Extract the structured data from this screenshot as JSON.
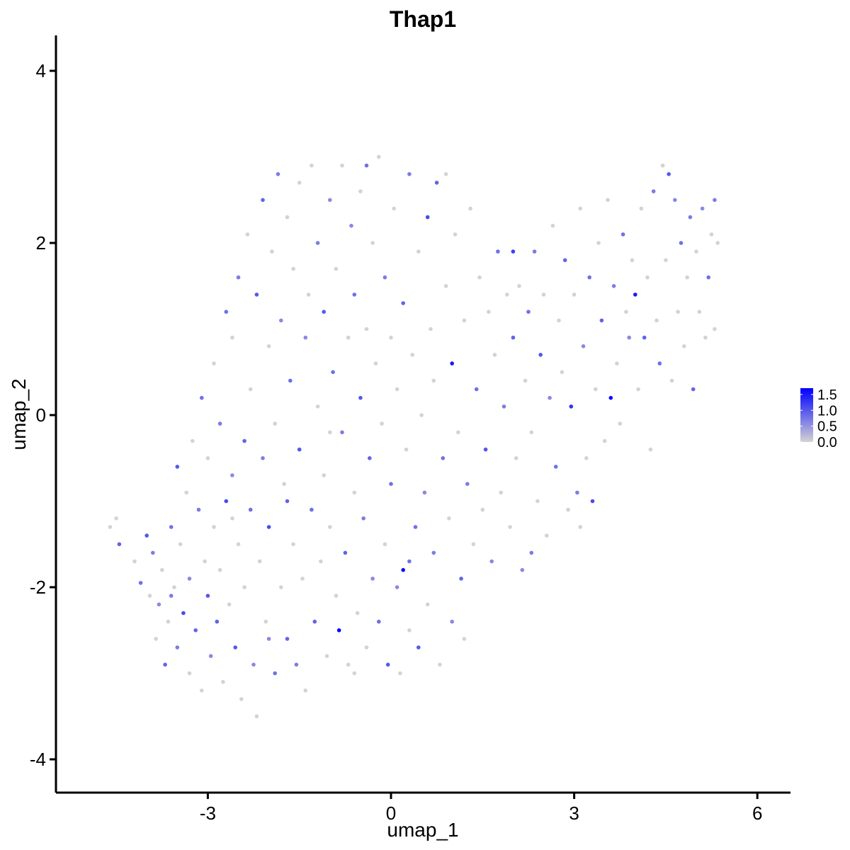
{
  "chart_data": {
    "type": "scatter",
    "title": "Thap1",
    "xlabel": "umap_1",
    "ylabel": "umap_2",
    "xlim": [
      -5.5,
      6.6
    ],
    "ylim": [
      -4.4,
      4.5
    ],
    "x_ticks": [
      -3,
      0,
      3,
      6
    ],
    "y_ticks": [
      -4,
      -2,
      0,
      2,
      4
    ],
    "x_tick_labels": [
      "-3",
      "0",
      "3",
      "6"
    ],
    "y_tick_labels": [
      "-4",
      "-2",
      "0",
      "2",
      "4"
    ],
    "grid": false,
    "legend": {
      "placement": "right",
      "type": "colorbar",
      "ticks": [
        1.5,
        1.0,
        0.5,
        0.0
      ],
      "tick_labels": [
        "1.5",
        "1.0",
        "0.5",
        "0.0"
      ],
      "range": [
        0.0,
        1.7
      ],
      "low_color": "#d3d3d3",
      "high_color": "#0000ff"
    },
    "points": [
      [
        -4.6,
        -1.3,
        0
      ],
      [
        -4.5,
        -1.2,
        0
      ],
      [
        -4.45,
        -1.5,
        0.9
      ],
      [
        -4.2,
        -1.7,
        0
      ],
      [
        -4.1,
        -1.95,
        0.8
      ],
      [
        -4.0,
        -1.4,
        1.0
      ],
      [
        -3.95,
        -2.1,
        0
      ],
      [
        -3.9,
        -1.6,
        0.7
      ],
      [
        -3.85,
        -2.6,
        0
      ],
      [
        -3.8,
        -2.2,
        0.6
      ],
      [
        -3.75,
        -1.8,
        0
      ],
      [
        -3.7,
        -2.9,
        0.9
      ],
      [
        -3.65,
        -2.4,
        0
      ],
      [
        -3.6,
        -1.3,
        0.8
      ],
      [
        -3.55,
        -2.0,
        0
      ],
      [
        -3.5,
        -2.7,
        0.7
      ],
      [
        -3.5,
        -0.6,
        1.0
      ],
      [
        -3.45,
        -1.5,
        0
      ],
      [
        -3.4,
        -2.3,
        1.1
      ],
      [
        -3.35,
        -0.9,
        0
      ],
      [
        -3.3,
        -3.0,
        0
      ],
      [
        -3.3,
        -1.9,
        0.6
      ],
      [
        -3.25,
        -0.3,
        0
      ],
      [
        -3.2,
        -2.5,
        0.9
      ],
      [
        -3.15,
        -1.1,
        0.7
      ],
      [
        -3.1,
        -3.2,
        0
      ],
      [
        -3.1,
        0.2,
        0.8
      ],
      [
        -3.05,
        -1.7,
        0
      ],
      [
        -3.0,
        -2.1,
        1.0
      ],
      [
        -3.0,
        -0.5,
        0
      ],
      [
        -2.95,
        -2.8,
        0.6
      ],
      [
        -2.9,
        -1.3,
        0
      ],
      [
        -2.9,
        0.6,
        0
      ],
      [
        -2.85,
        -2.4,
        0.9
      ],
      [
        -2.8,
        -0.1,
        0.7
      ],
      [
        -2.8,
        -1.8,
        0
      ],
      [
        -2.75,
        -3.1,
        0
      ],
      [
        -2.7,
        -1.0,
        1.1
      ],
      [
        -2.7,
        1.2,
        0.8
      ],
      [
        -2.65,
        -2.2,
        0
      ],
      [
        -2.6,
        -0.7,
        0.6
      ],
      [
        -2.6,
        0.9,
        0
      ],
      [
        -2.55,
        -2.7,
        1.0
      ],
      [
        -2.5,
        -1.5,
        0
      ],
      [
        -2.5,
        1.6,
        0.7
      ],
      [
        -2.45,
        -3.3,
        0
      ],
      [
        -2.4,
        -0.3,
        0.9
      ],
      [
        -2.4,
        -2.0,
        0
      ],
      [
        -2.35,
        2.1,
        0
      ],
      [
        -2.3,
        -1.1,
        0.8
      ],
      [
        -2.3,
        0.3,
        0
      ],
      [
        -2.25,
        -2.9,
        0.6
      ],
      [
        -2.2,
        -3.5,
        0
      ],
      [
        -2.2,
        1.4,
        1.0
      ],
      [
        -2.15,
        -1.7,
        0
      ],
      [
        -2.1,
        -0.5,
        0.7
      ],
      [
        -2.1,
        2.5,
        0.9
      ],
      [
        -2.05,
        -2.4,
        0
      ],
      [
        -2.0,
        0.8,
        0
      ],
      [
        -2.0,
        -1.3,
        1.1
      ],
      [
        -1.95,
        1.9,
        0
      ],
      [
        -1.9,
        -3.0,
        0.8
      ],
      [
        -1.9,
        -0.1,
        0
      ],
      [
        -1.85,
        2.8,
        0.7
      ],
      [
        -1.8,
        -2.0,
        0
      ],
      [
        -1.8,
        1.1,
        0.6
      ],
      [
        -1.75,
        -0.8,
        0
      ],
      [
        -1.7,
        -2.6,
        0.9
      ],
      [
        -1.7,
        2.3,
        0
      ],
      [
        -1.65,
        0.4,
        0.8
      ],
      [
        -1.6,
        -1.5,
        0
      ],
      [
        -1.6,
        1.7,
        0
      ],
      [
        -1.55,
        -2.9,
        0.7
      ],
      [
        -1.5,
        2.7,
        0
      ],
      [
        -1.5,
        -0.4,
        1.0
      ],
      [
        -1.45,
        -1.9,
        0
      ],
      [
        -1.4,
        0.9,
        0.6
      ],
      [
        -1.4,
        -3.2,
        0
      ],
      [
        -1.35,
        1.4,
        0
      ],
      [
        -1.3,
        -1.1,
        0.8
      ],
      [
        -1.3,
        2.9,
        0
      ],
      [
        -1.25,
        -2.4,
        0.9
      ],
      [
        -1.2,
        0.1,
        0
      ],
      [
        -1.2,
        2.0,
        0.7
      ],
      [
        -1.15,
        -1.7,
        0
      ],
      [
        -1.1,
        -0.7,
        0
      ],
      [
        -1.1,
        1.2,
        1.0
      ],
      [
        -1.05,
        -2.8,
        0
      ],
      [
        -1.0,
        2.5,
        0.6
      ],
      [
        -1.0,
        -1.3,
        0
      ],
      [
        -0.95,
        0.5,
        0.8
      ],
      [
        -0.9,
        -2.1,
        0
      ],
      [
        -0.9,
        1.7,
        0
      ],
      [
        -0.85,
        -2.5,
        1.7
      ],
      [
        -0.8,
        -0.2,
        0.7
      ],
      [
        -0.8,
        2.9,
        0
      ],
      [
        -0.75,
        -1.6,
        0.9
      ],
      [
        -0.7,
        0.9,
        0
      ],
      [
        -0.7,
        -2.9,
        0
      ],
      [
        -0.65,
        2.2,
        0.6
      ],
      [
        -0.6,
        -0.9,
        0
      ],
      [
        -0.6,
        1.4,
        0.8
      ],
      [
        -0.55,
        -2.3,
        0
      ],
      [
        -0.5,
        0.2,
        1.0
      ],
      [
        -0.5,
        2.6,
        0
      ],
      [
        -0.45,
        -1.2,
        0.7
      ],
      [
        -0.4,
        -2.7,
        0
      ],
      [
        -0.4,
        1.0,
        0
      ],
      [
        -0.35,
        -0.5,
        0.9
      ],
      [
        -0.3,
        2.0,
        0
      ],
      [
        -0.3,
        -1.9,
        0.6
      ],
      [
        -0.25,
        0.6,
        0
      ],
      [
        -0.2,
        3.0,
        0
      ],
      [
        -0.2,
        -2.4,
        0.8
      ],
      [
        -0.15,
        -0.1,
        0
      ],
      [
        -0.1,
        1.6,
        0.7
      ],
      [
        -0.1,
        -1.5,
        0
      ],
      [
        -0.05,
        -2.9,
        1.0
      ],
      [
        0.0,
        0.9,
        0
      ],
      [
        0.0,
        -0.8,
        0.8
      ],
      [
        0.05,
        2.4,
        0
      ],
      [
        0.1,
        -2.0,
        0.6
      ],
      [
        0.1,
        0.3,
        0
      ],
      [
        0.15,
        -3.0,
        0
      ],
      [
        0.2,
        -1.8,
        1.6
      ],
      [
        0.2,
        1.3,
        0.9
      ],
      [
        0.25,
        -0.4,
        0
      ],
      [
        0.3,
        2.8,
        0.7
      ],
      [
        0.3,
        -2.5,
        0
      ],
      [
        0.35,
        0.7,
        0
      ],
      [
        0.4,
        -1.3,
        0.8
      ],
      [
        0.45,
        1.9,
        0
      ],
      [
        0.45,
        -2.7,
        1.0
      ],
      [
        0.5,
        0.0,
        0
      ],
      [
        0.55,
        -0.9,
        0.6
      ],
      [
        0.6,
        2.3,
        1.1
      ],
      [
        0.6,
        -2.2,
        0
      ],
      [
        0.65,
        1.0,
        0
      ],
      [
        0.7,
        -1.6,
        0.7
      ],
      [
        0.7,
        0.4,
        0
      ],
      [
        0.75,
        2.7,
        0.9
      ],
      [
        0.8,
        -2.9,
        0
      ],
      [
        0.85,
        -0.5,
        0.8
      ],
      [
        0.9,
        1.5,
        0
      ],
      [
        0.95,
        -1.2,
        0
      ],
      [
        1.0,
        0.6,
        1.5
      ],
      [
        1.0,
        -2.4,
        0.6
      ],
      [
        1.05,
        2.1,
        0
      ],
      [
        1.1,
        -0.2,
        0
      ],
      [
        1.15,
        -1.9,
        0.9
      ],
      [
        1.2,
        1.1,
        0
      ],
      [
        1.25,
        -0.8,
        0.7
      ],
      [
        1.3,
        2.4,
        0
      ],
      [
        1.35,
        -1.5,
        0
      ],
      [
        1.4,
        0.3,
        0.8
      ],
      [
        1.45,
        1.6,
        0
      ],
      [
        1.5,
        -1.1,
        0
      ],
      [
        1.55,
        -0.4,
        1.0
      ],
      [
        1.6,
        1.2,
        0
      ],
      [
        1.65,
        -1.7,
        0.6
      ],
      [
        1.7,
        0.7,
        0
      ],
      [
        1.75,
        1.9,
        0.8
      ],
      [
        1.8,
        -0.9,
        0
      ],
      [
        1.85,
        0.1,
        0.7
      ],
      [
        1.9,
        1.4,
        0
      ],
      [
        1.95,
        -1.3,
        0
      ],
      [
        2.0,
        0.9,
        0.9
      ],
      [
        2.0,
        1.9,
        1.2
      ],
      [
        2.05,
        -0.5,
        0
      ],
      [
        2.1,
        1.5,
        0
      ],
      [
        2.15,
        -1.8,
        0.6
      ],
      [
        2.2,
        0.4,
        0
      ],
      [
        2.25,
        1.2,
        0.8
      ],
      [
        2.3,
        -0.2,
        0
      ],
      [
        2.35,
        1.9,
        0.7
      ],
      [
        2.4,
        -1.0,
        0
      ],
      [
        2.45,
        0.7,
        1.0
      ],
      [
        2.5,
        1.4,
        0
      ],
      [
        2.55,
        -1.4,
        0
      ],
      [
        2.6,
        0.2,
        0.6
      ],
      [
        2.65,
        2.2,
        0
      ],
      [
        2.7,
        -0.6,
        0.8
      ],
      [
        2.75,
        1.1,
        0
      ],
      [
        2.8,
        0.5,
        0
      ],
      [
        2.85,
        1.8,
        0.9
      ],
      [
        2.9,
        -1.1,
        0
      ],
      [
        2.95,
        0.1,
        1.3
      ],
      [
        3.0,
        1.4,
        0
      ],
      [
        3.05,
        -0.9,
        0.7
      ],
      [
        3.1,
        2.4,
        0
      ],
      [
        3.15,
        0.8,
        0.6
      ],
      [
        3.2,
        -0.5,
        0
      ],
      [
        3.25,
        1.6,
        0.8
      ],
      [
        3.3,
        -1.0,
        1.1
      ],
      [
        3.35,
        0.3,
        0
      ],
      [
        3.4,
        2.0,
        0
      ],
      [
        3.45,
        1.1,
        0.9
      ],
      [
        3.5,
        -0.3,
        0
      ],
      [
        3.55,
        2.5,
        0
      ],
      [
        3.6,
        0.2,
        1.6
      ],
      [
        3.65,
        1.5,
        0.7
      ],
      [
        3.7,
        0.6,
        0
      ],
      [
        3.75,
        -0.1,
        0
      ],
      [
        3.8,
        2.1,
        0.8
      ],
      [
        3.85,
        1.2,
        0
      ],
      [
        3.9,
        0.9,
        0.6
      ],
      [
        3.95,
        1.8,
        0
      ],
      [
        4.0,
        1.4,
        1.5
      ],
      [
        4.05,
        0.3,
        0
      ],
      [
        4.1,
        2.4,
        0
      ],
      [
        4.15,
        0.9,
        0.9
      ],
      [
        4.2,
        1.6,
        0
      ],
      [
        4.25,
        -0.4,
        0
      ],
      [
        4.3,
        2.6,
        0.7
      ],
      [
        4.35,
        1.1,
        0
      ],
      [
        4.4,
        0.6,
        0.8
      ],
      [
        4.45,
        2.9,
        0
      ],
      [
        4.5,
        1.8,
        0
      ],
      [
        4.55,
        2.8,
        1.0
      ],
      [
        4.6,
        0.4,
        0
      ],
      [
        4.65,
        2.5,
        0.6
      ],
      [
        4.7,
        1.2,
        0
      ],
      [
        4.75,
        2.0,
        0.8
      ],
      [
        4.8,
        0.8,
        0
      ],
      [
        4.85,
        1.6,
        0
      ],
      [
        4.9,
        2.3,
        0.7
      ],
      [
        4.95,
        0.3,
        0.9
      ],
      [
        5.0,
        1.9,
        0
      ],
      [
        5.05,
        1.2,
        0
      ],
      [
        5.1,
        2.4,
        0.6
      ],
      [
        5.15,
        0.9,
        0
      ],
      [
        5.2,
        1.6,
        0.8
      ],
      [
        5.25,
        2.1,
        0
      ],
      [
        5.3,
        2.5,
        0.7
      ],
      [
        5.35,
        2.0,
        0
      ],
      [
        5.3,
        1.0,
        0
      ],
      [
        -1.7,
        -1.0,
        0.9
      ],
      [
        -2.6,
        -1.2,
        0
      ],
      [
        -3.6,
        -2.1,
        0.7
      ],
      [
        -1.0,
        -0.2,
        0
      ],
      [
        0.3,
        -1.7,
        0.8
      ],
      [
        1.2,
        -2.6,
        0
      ],
      [
        2.3,
        -1.6,
        0.7
      ],
      [
        3.1,
        -1.3,
        0
      ],
      [
        -0.6,
        -3.0,
        0
      ],
      [
        -2.0,
        -2.6,
        0.6
      ],
      [
        0.9,
        2.8,
        0
      ],
      [
        -0.4,
        2.9,
        0.8
      ]
    ]
  }
}
